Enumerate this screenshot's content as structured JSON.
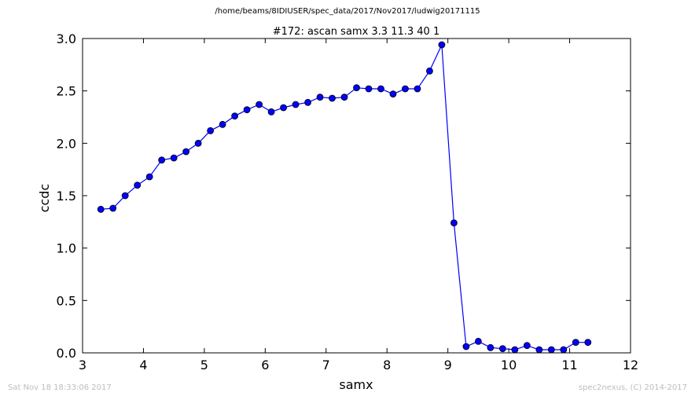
{
  "header": {
    "path": "/home/beams/8IDIUSER/spec_data/2017/Nov2017/ludwig20171115"
  },
  "footer": {
    "timestamp": "Sat Nov 18 18:33:06 2017",
    "credit": "spec2nexus, (C) 2014-2017"
  },
  "colors": {
    "series": "#0000ff",
    "marker": "#0000ff",
    "axes": "#000000",
    "footer_text": "#bdbdbd"
  },
  "chart_data": {
    "type": "line",
    "title": "#172: ascan  samx 3.3 11.3  40 1",
    "xlabel": "samx",
    "ylabel": "ccdc",
    "xlim": [
      3,
      12
    ],
    "ylim": [
      0.0,
      3.0
    ],
    "xticks": [
      3,
      4,
      5,
      6,
      7,
      8,
      9,
      10,
      11,
      12
    ],
    "yticks": [
      0.0,
      0.5,
      1.0,
      1.5,
      2.0,
      2.5,
      3.0
    ],
    "xtick_labels": [
      "3",
      "4",
      "5",
      "6",
      "7",
      "8",
      "9",
      "10",
      "11",
      "12"
    ],
    "ytick_labels": [
      "0.0",
      "0.5",
      "1.0",
      "1.5",
      "2.0",
      "2.5",
      "3.0"
    ],
    "grid": false,
    "marker": "circle",
    "series": [
      {
        "x": [
          3.3,
          3.5,
          3.7,
          3.9,
          4.1,
          4.3,
          4.5,
          4.7,
          4.9,
          5.1,
          5.3,
          5.5,
          5.7,
          5.9,
          6.1,
          6.3,
          6.5,
          6.7,
          6.9,
          7.1,
          7.3,
          7.5,
          7.7,
          7.9,
          8.1,
          8.3,
          8.5,
          8.7,
          8.9,
          9.1,
          9.3,
          9.5,
          9.7,
          9.9,
          10.1,
          10.3,
          10.5,
          10.7,
          10.9,
          11.1,
          11.3
        ],
        "y": [
          1.37,
          1.38,
          1.5,
          1.6,
          1.68,
          1.84,
          1.86,
          1.92,
          2.0,
          2.12,
          2.18,
          2.26,
          2.32,
          2.37,
          2.3,
          2.34,
          2.37,
          2.39,
          2.44,
          2.43,
          2.44,
          2.53,
          2.52,
          2.52,
          2.47,
          2.52,
          2.52,
          2.69,
          2.94,
          1.24,
          0.06,
          0.11,
          0.05,
          0.04,
          0.03,
          0.07,
          0.03,
          0.03,
          0.03,
          0.1,
          0.1
        ]
      }
    ]
  }
}
